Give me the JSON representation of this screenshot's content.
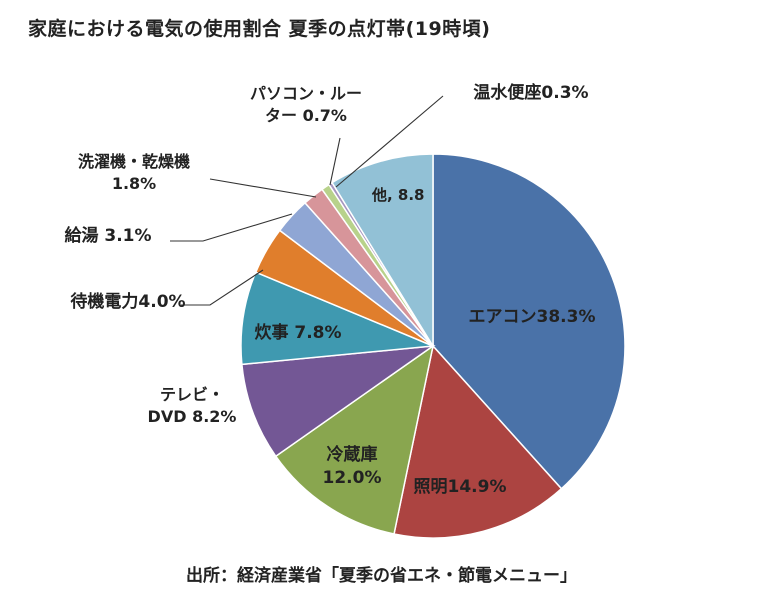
{
  "title": "家庭における電気の使用割合 夏季の点灯帯(19時頃)",
  "source": "出所：経済産業省「夏季の省エネ・節電メニュー」",
  "chart_data": {
    "type": "pie",
    "title": "家庭における電気の使用割合 夏季の点灯帯(19時頃)",
    "slices": [
      {
        "name": "エアコン",
        "value": 38.3,
        "label": [
          "エアコン38.3%"
        ],
        "color": "#4a72a8"
      },
      {
        "name": "照明",
        "value": 14.9,
        "label": [
          "照明14.9%"
        ],
        "color": "#ac4441"
      },
      {
        "name": "冷蔵庫",
        "value": 12.0,
        "label": [
          "冷蔵庫",
          "12.0%"
        ],
        "color": "#89a64f"
      },
      {
        "name": "テレビ・DVD",
        "value": 8.2,
        "label": [
          "テレビ・",
          "DVD 8.2%"
        ],
        "color": "#735795"
      },
      {
        "name": "炊事",
        "value": 7.8,
        "label": [
          "炊事 7.8%"
        ],
        "color": "#3f99b0"
      },
      {
        "name": "待機電力",
        "value": 4.0,
        "label": [
          "待機電力4.0%"
        ],
        "color": "#e07e2c"
      },
      {
        "name": "給湯",
        "value": 3.1,
        "label": [
          "給湯 3.1%"
        ],
        "color": "#8fa6d4"
      },
      {
        "name": "洗濯機・乾燥機",
        "value": 1.8,
        "label": [
          "洗濯機・乾燥機",
          "1.8%"
        ],
        "color": "#d7959a"
      },
      {
        "name": "パソコン・ルーター",
        "value": 0.7,
        "label": [
          "パソコン・ルー",
          "ター 0.7%"
        ],
        "color": "#b8d28b"
      },
      {
        "name": "温水便座",
        "value": 0.3,
        "label": [
          "温水便座0.3%"
        ],
        "color": "#a696bf"
      },
      {
        "name": "他",
        "value": 8.8,
        "label": [
          "他, 8.8"
        ],
        "color": "#92c1d6"
      }
    ]
  }
}
